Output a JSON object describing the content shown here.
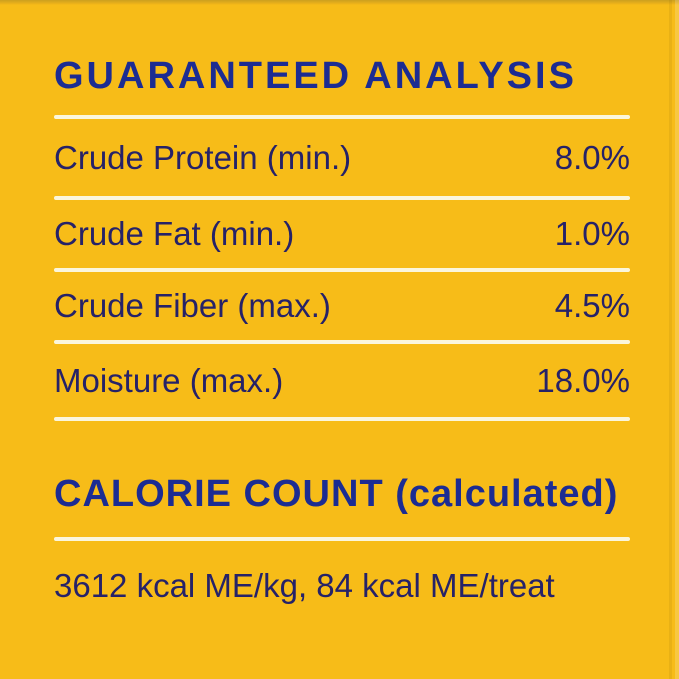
{
  "panel": {
    "title": "GUARANTEED ANALYSIS",
    "rows": [
      {
        "label": "Crude Protein (min.)",
        "value": "8.0%"
      },
      {
        "label": "Crude Fat (min.)",
        "value": "1.0%"
      },
      {
        "label": "Crude Fiber (max.)",
        "value": "4.5%"
      },
      {
        "label": "Moisture (max.)",
        "value": "18.0%"
      }
    ],
    "calorie": {
      "heading": "CALORIE COUNT (calculated)",
      "statement": "3612 kcal ME/kg, 84 kcal ME/treat"
    },
    "colors": {
      "background_yellow": "#f7bc18",
      "heading_blue": "#1c2c92",
      "body_navy": "#262268",
      "divider_cream": "#fbf6dc"
    }
  }
}
